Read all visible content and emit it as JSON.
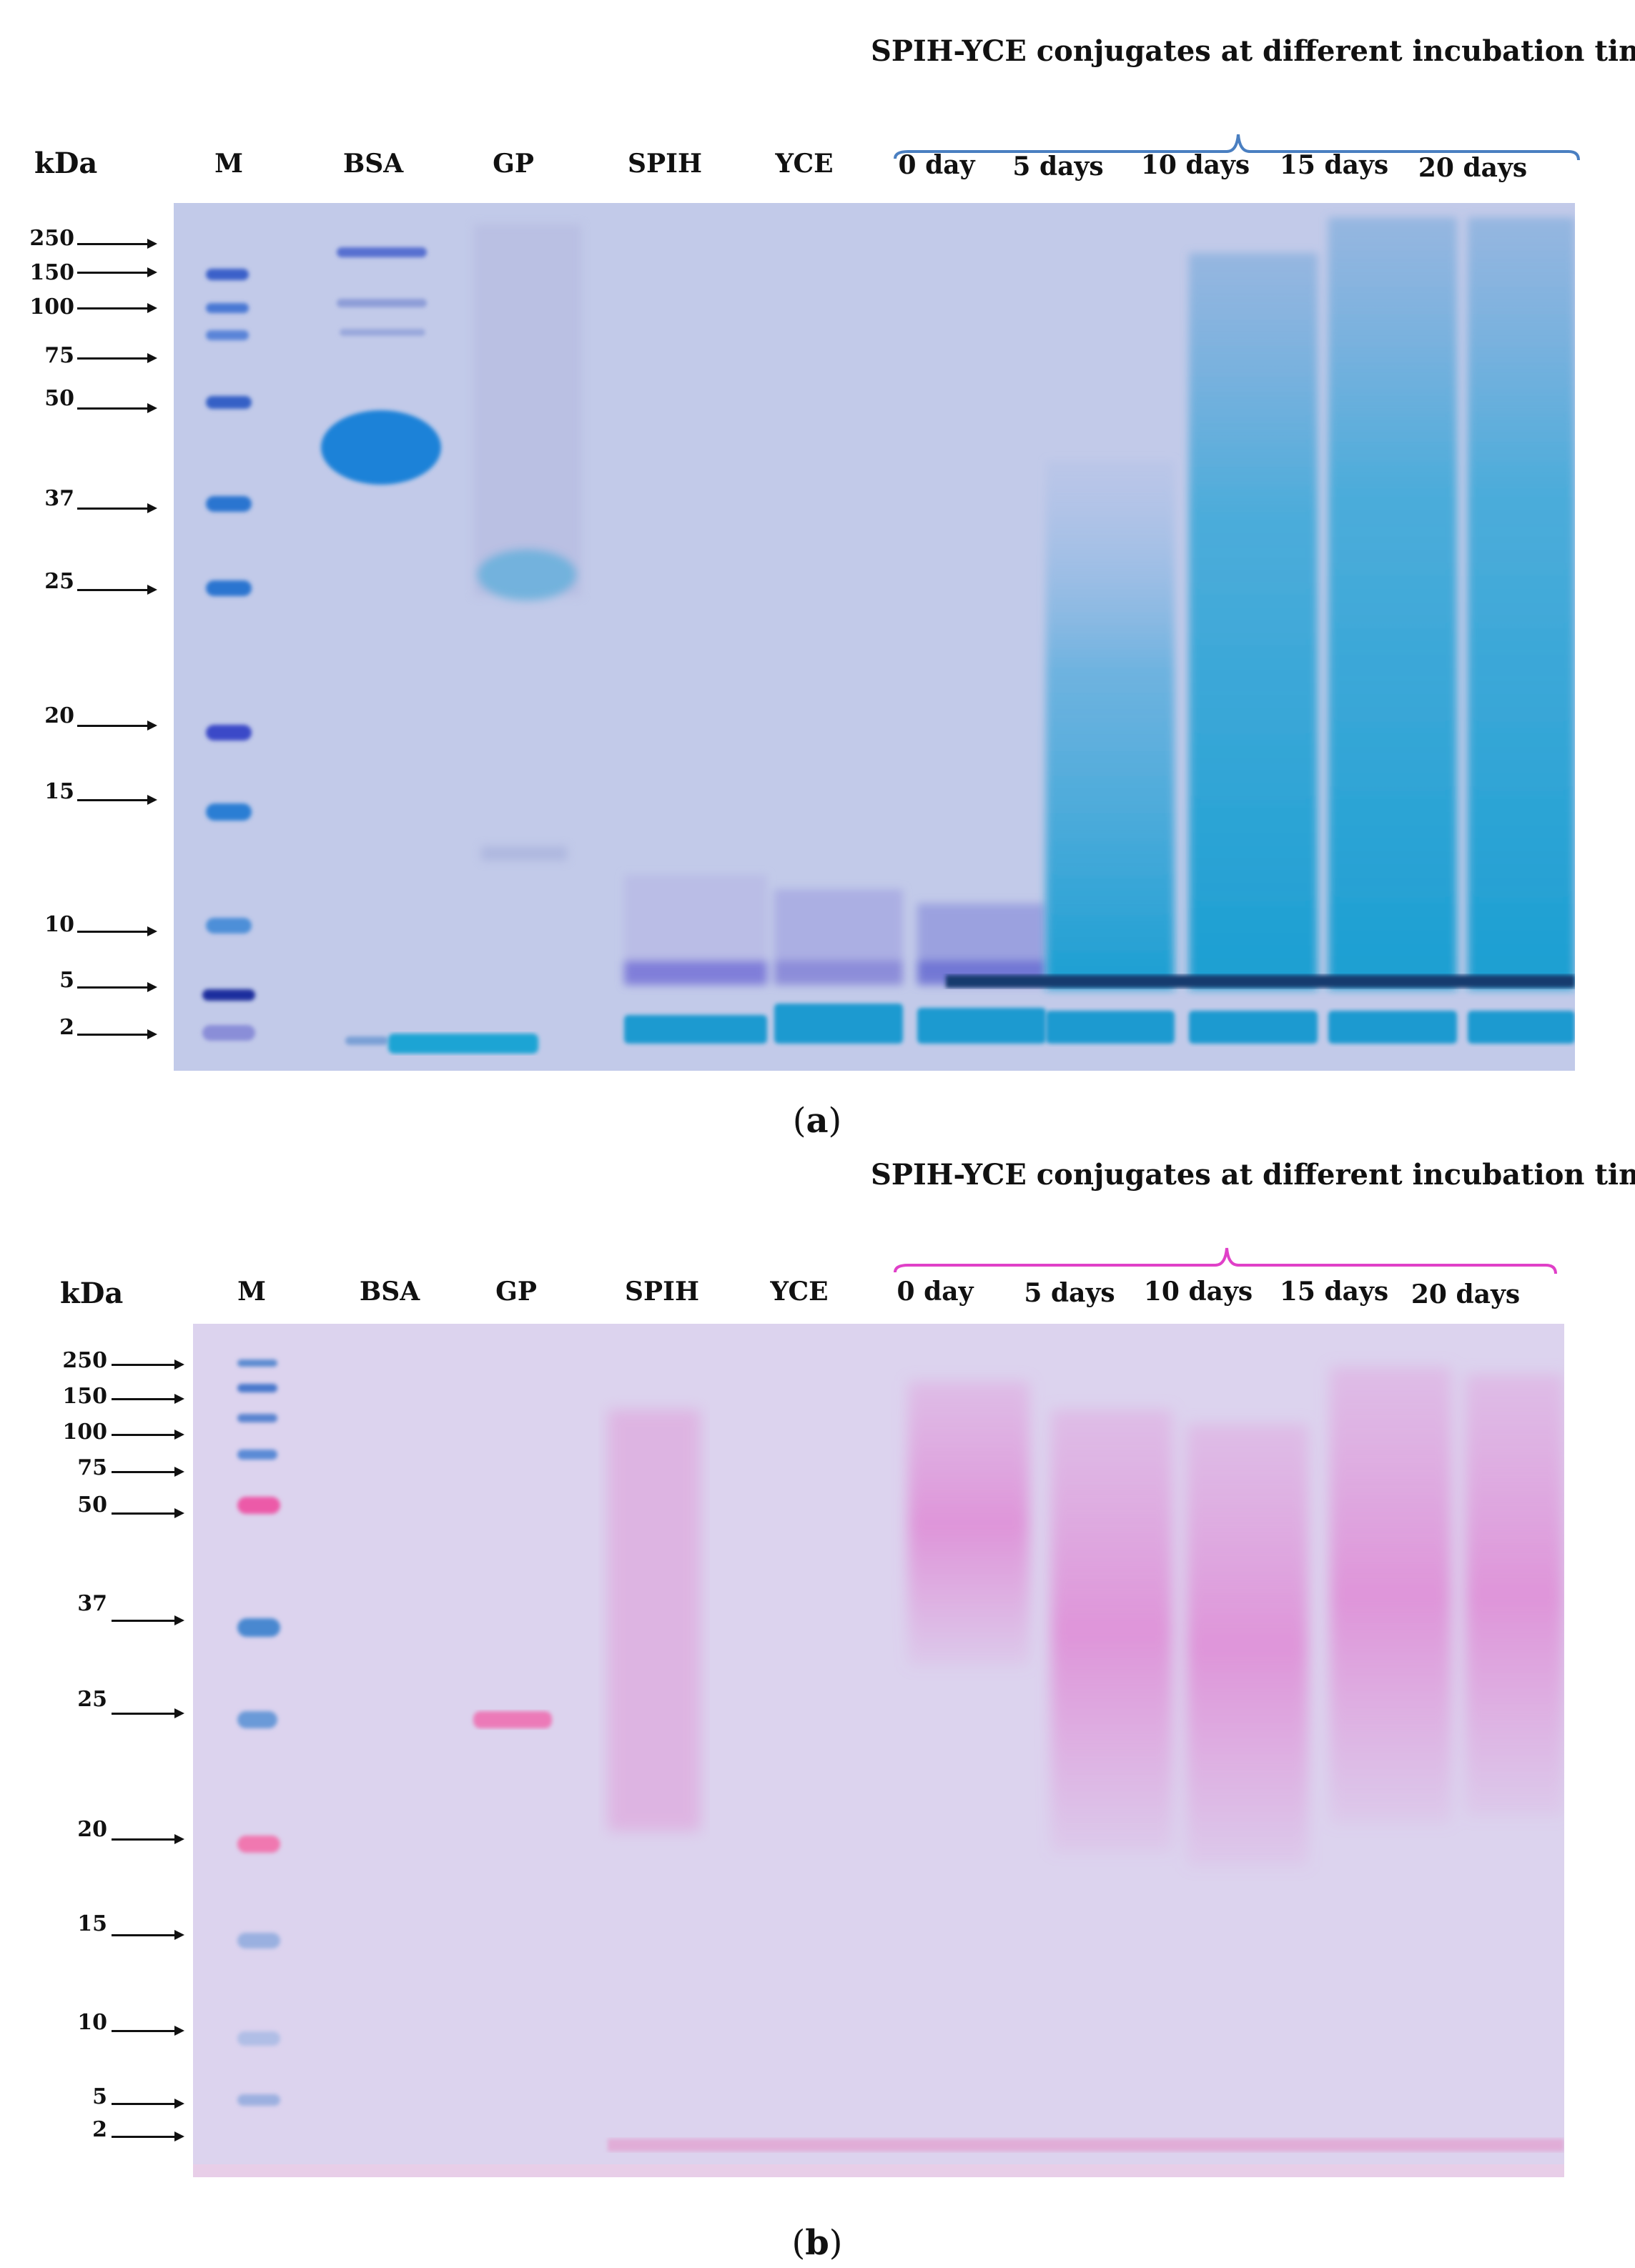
{
  "panel_a": {
    "bracket_title": "SPIH-YCE conjugates at different incubation time",
    "bracket_color": "#4a7fc1",
    "unit_label": "kDa",
    "lanes": [
      "M",
      "BSA",
      "GP",
      "SPIH",
      "YCE",
      "0 day",
      "5 days",
      "10 days",
      "15 days",
      "20 days"
    ],
    "markers": [
      "250",
      "150",
      "100",
      "75",
      "50",
      "37",
      "25",
      "20",
      "15",
      "10",
      "5",
      "2"
    ],
    "caption_letter": "a",
    "stain": "Coomassie blue"
  },
  "panel_b": {
    "bracket_title": "SPIH-YCE conjugates at different incubation time",
    "bracket_color": "#e040c8",
    "unit_label": "kDa",
    "lanes": [
      "M",
      "BSA",
      "GP",
      "SPIH",
      "YCE",
      "0 day",
      "5 days",
      "10 days",
      "15 days",
      "20 days"
    ],
    "markers": [
      "250",
      "150",
      "100",
      "75",
      "50",
      "37",
      "25",
      "20",
      "15",
      "10",
      "5",
      "2"
    ],
    "caption_letter": "b",
    "stain": "PAS pink"
  }
}
